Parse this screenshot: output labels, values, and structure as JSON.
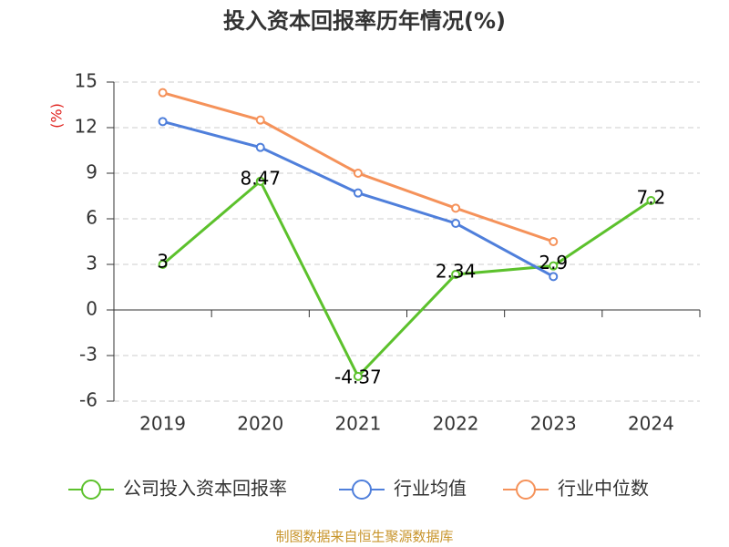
{
  "chart_data": {
    "type": "line",
    "title": "投入资本回报率历年情况(%)",
    "y_label": "(%)",
    "source": "制图数据来自恒生聚源数据库",
    "categories": [
      "2019",
      "2020",
      "2021",
      "2022",
      "2023",
      "2024"
    ],
    "series": [
      {
        "name": "公司投入资本回报率",
        "color": "#5cc12c",
        "values": [
          3,
          8.47,
          -4.37,
          2.34,
          2.9,
          7.2
        ],
        "show_labels": true
      },
      {
        "name": "行业均值",
        "color": "#4f7fdb",
        "values": [
          12.4,
          10.7,
          7.7,
          5.7,
          2.2,
          null
        ],
        "show_labels": false
      },
      {
        "name": "行业中位数",
        "color": "#f5925a",
        "values": [
          14.3,
          12.5,
          9.0,
          6.7,
          4.5,
          null
        ],
        "show_labels": false
      }
    ],
    "ylim": [
      -6,
      15
    ],
    "yticks": [
      15,
      12,
      9,
      6,
      3,
      0,
      -3,
      -6
    ],
    "grid": true
  }
}
